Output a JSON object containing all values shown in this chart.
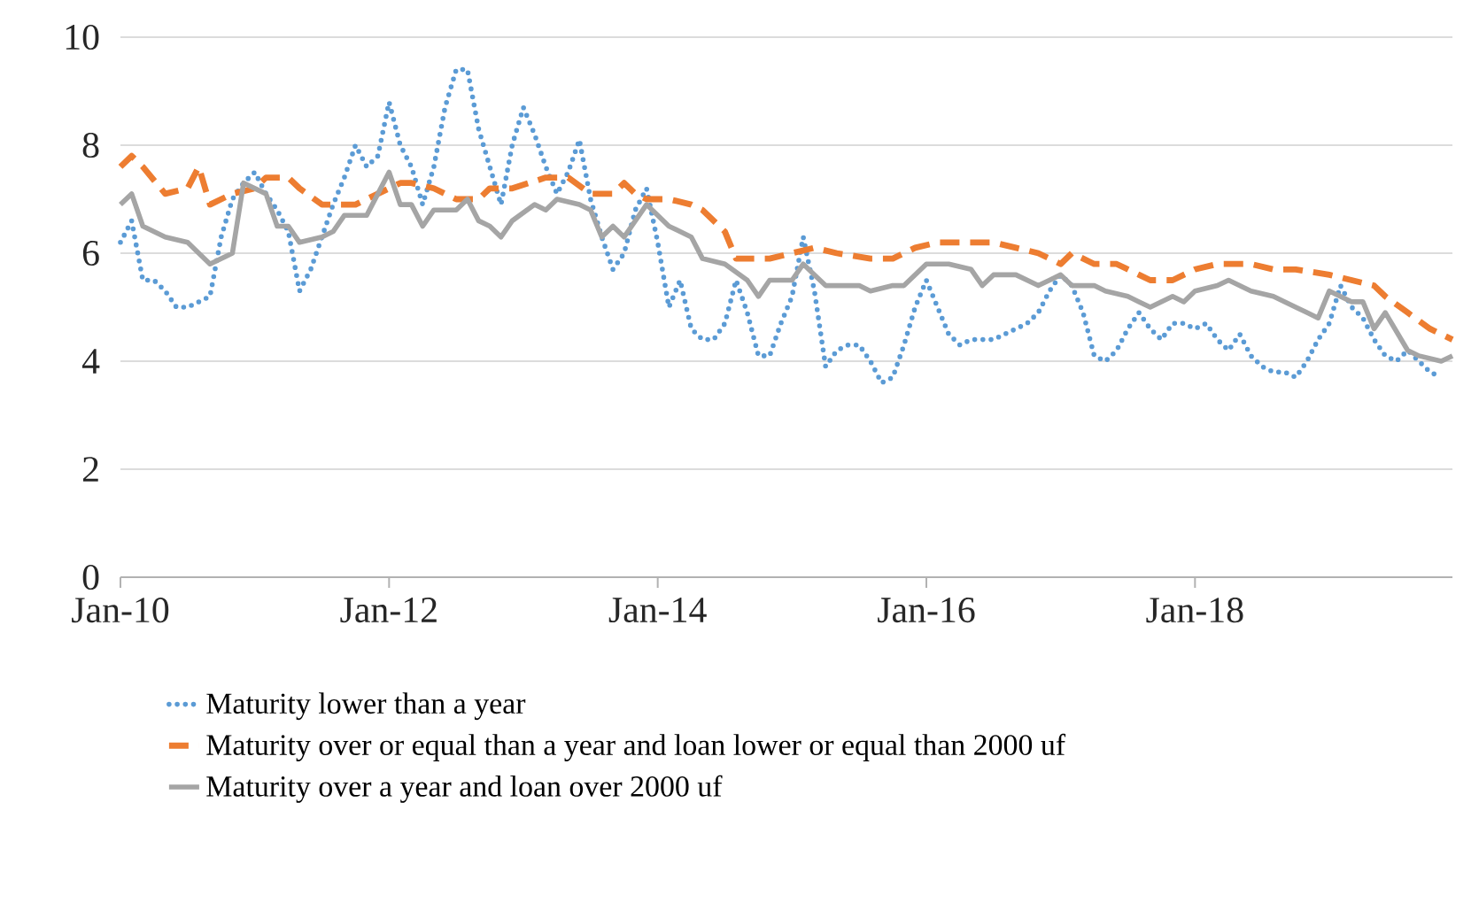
{
  "chart_data": {
    "type": "line",
    "xlim": [
      "2010-01",
      "2019-12"
    ],
    "ylim": [
      0,
      10
    ],
    "xticks": [
      {
        "value": "2010-01",
        "label": "Jan-10"
      },
      {
        "value": "2012-01",
        "label": "Jan-12"
      },
      {
        "value": "2014-01",
        "label": "Jan-14"
      },
      {
        "value": "2016-01",
        "label": "Jan-16"
      },
      {
        "value": "2018-01",
        "label": "Jan-18"
      }
    ],
    "yticks": [
      0,
      2,
      4,
      6,
      8,
      10
    ],
    "grid": "y",
    "legend": "bottom",
    "series": [
      {
        "name": "Maturity lower than a year",
        "color": "#5b9bd5",
        "line_style": "dotted",
        "x": [
          "2010-01",
          "2010-02",
          "2010-03",
          "2010-04",
          "2010-05",
          "2010-06",
          "2010-07",
          "2010-08",
          "2010-09",
          "2010-10",
          "2010-11",
          "2010-12",
          "2011-01",
          "2011-02",
          "2011-03",
          "2011-04",
          "2011-05",
          "2011-06",
          "2011-07",
          "2011-08",
          "2011-09",
          "2011-10",
          "2011-11",
          "2011-12",
          "2012-01",
          "2012-02",
          "2012-03",
          "2012-04",
          "2012-05",
          "2012-06",
          "2012-07",
          "2012-08",
          "2012-09",
          "2012-10",
          "2012-11",
          "2012-12",
          "2013-01",
          "2013-02",
          "2013-03",
          "2013-04",
          "2013-05",
          "2013-06",
          "2013-07",
          "2013-08",
          "2013-09",
          "2013-10",
          "2013-11",
          "2013-12",
          "2014-01",
          "2014-02",
          "2014-03",
          "2014-04",
          "2014-05",
          "2014-06",
          "2014-07",
          "2014-08",
          "2014-09",
          "2014-10",
          "2014-11",
          "2014-12",
          "2015-01",
          "2015-02",
          "2015-03",
          "2015-04",
          "2015-05",
          "2015-06",
          "2015-07",
          "2015-08",
          "2015-09",
          "2015-10",
          "2015-11",
          "2015-12",
          "2016-01",
          "2016-02",
          "2016-03",
          "2016-04",
          "2016-05",
          "2016-06",
          "2016-07",
          "2016-08",
          "2016-09",
          "2016-10",
          "2016-11",
          "2016-12",
          "2017-01",
          "2017-02",
          "2017-03",
          "2017-04",
          "2017-05",
          "2017-06",
          "2017-07",
          "2017-08",
          "2017-09",
          "2017-10",
          "2017-11",
          "2017-12",
          "2018-01",
          "2018-02",
          "2018-03",
          "2018-04",
          "2018-05",
          "2018-06",
          "2018-07",
          "2018-08",
          "2018-09",
          "2018-10",
          "2018-11",
          "2018-12",
          "2019-01",
          "2019-02",
          "2019-03",
          "2019-04",
          "2019-05",
          "2019-06",
          "2019-07",
          "2019-08",
          "2019-09",
          "2019-10",
          "2019-11"
        ],
        "values": [
          6.2,
          6.6,
          5.5,
          5.5,
          5.3,
          5.0,
          5.0,
          5.1,
          5.2,
          6.3,
          7.0,
          7.3,
          7.5,
          7.1,
          6.8,
          6.4,
          5.3,
          5.7,
          6.3,
          6.9,
          7.4,
          8.0,
          7.6,
          7.8,
          8.8,
          8.0,
          7.6,
          6.9,
          7.6,
          8.7,
          9.4,
          9.4,
          8.3,
          7.6,
          6.9,
          8.0,
          8.7,
          8.2,
          7.6,
          7.1,
          7.5,
          8.1,
          7.0,
          6.3,
          5.7,
          6.0,
          6.8,
          7.2,
          6.2,
          5.0,
          5.5,
          4.6,
          4.4,
          4.4,
          4.7,
          5.5,
          4.9,
          4.1,
          4.1,
          4.7,
          5.2,
          6.3,
          5.3,
          3.9,
          4.2,
          4.3,
          4.3,
          4.0,
          3.6,
          3.7,
          4.3,
          5.0,
          5.5,
          5.0,
          4.5,
          4.3,
          4.4,
          4.4,
          4.4,
          4.5,
          4.6,
          4.7,
          4.9,
          5.3,
          5.6,
          5.4,
          4.9,
          4.1,
          4.0,
          4.2,
          4.6,
          4.9,
          4.6,
          4.4,
          4.7,
          4.7,
          4.6,
          4.7,
          4.4,
          4.2,
          4.5,
          4.1,
          3.9,
          3.8,
          3.8,
          3.7,
          4.0,
          4.4,
          4.7,
          5.4,
          5.0,
          4.8,
          4.4,
          4.1,
          4.0,
          4.2,
          4.0,
          3.8,
          3.7
        ]
      },
      {
        "name": "Maturity over or equal than a year and loan lower or equal than 2000 uf",
        "color": "#ed7d31",
        "line_style": "dashed",
        "x": [
          "2010-01",
          "2010-02",
          "2010-03",
          "2010-05",
          "2010-07",
          "2010-08",
          "2010-09",
          "2010-11",
          "2011-01",
          "2011-02",
          "2011-04",
          "2011-05",
          "2011-07",
          "2011-09",
          "2011-10",
          "2011-12",
          "2012-02",
          "2012-03",
          "2012-05",
          "2012-07",
          "2012-09",
          "2012-10",
          "2012-12",
          "2013-03",
          "2013-05",
          "2013-07",
          "2013-09",
          "2013-10",
          "2013-11",
          "2013-12",
          "2014-02",
          "2014-04",
          "2014-05",
          "2014-07",
          "2014-08",
          "2014-10",
          "2014-11",
          "2015-01",
          "2015-03",
          "2015-05",
          "2015-08",
          "2015-10",
          "2015-12",
          "2016-02",
          "2016-04",
          "2016-06",
          "2016-07",
          "2016-09",
          "2016-11",
          "2017-01",
          "2017-02",
          "2017-04",
          "2017-06",
          "2017-08",
          "2017-09",
          "2017-11",
          "2018-01",
          "2018-03",
          "2018-04",
          "2018-06",
          "2018-08",
          "2018-10",
          "2019-01",
          "2019-03",
          "2019-05",
          "2019-06",
          "2019-08",
          "2019-10",
          "2019-12"
        ],
        "values": [
          7.6,
          7.8,
          7.6,
          7.1,
          7.2,
          7.6,
          6.9,
          7.1,
          7.2,
          7.4,
          7.4,
          7.2,
          6.9,
          6.9,
          6.9,
          7.1,
          7.3,
          7.3,
          7.2,
          7.0,
          7.0,
          7.2,
          7.2,
          7.4,
          7.4,
          7.1,
          7.1,
          7.3,
          7.1,
          7.0,
          7.0,
          6.9,
          6.8,
          6.4,
          5.9,
          5.9,
          5.9,
          6.0,
          6.1,
          6.0,
          5.9,
          5.9,
          6.1,
          6.2,
          6.2,
          6.2,
          6.2,
          6.1,
          6.0,
          5.8,
          6.0,
          5.8,
          5.8,
          5.6,
          5.5,
          5.5,
          5.7,
          5.8,
          5.8,
          5.8,
          5.7,
          5.7,
          5.6,
          5.5,
          5.4,
          5.2,
          4.9,
          4.6,
          4.4
        ]
      },
      {
        "name": "Maturity over a year and loan over 2000 uf",
        "color": "#a5a5a5",
        "line_style": "solid",
        "x": [
          "2010-01",
          "2010-02",
          "2010-03",
          "2010-05",
          "2010-07",
          "2010-08",
          "2010-09",
          "2010-11",
          "2010-12",
          "2011-02",
          "2011-03",
          "2011-04",
          "2011-05",
          "2011-07",
          "2011-08",
          "2011-09",
          "2011-11",
          "2011-12",
          "2012-01",
          "2012-02",
          "2012-03",
          "2012-04",
          "2012-05",
          "2012-07",
          "2012-08",
          "2012-09",
          "2012-10",
          "2012-11",
          "2012-12",
          "2013-02",
          "2013-03",
          "2013-04",
          "2013-06",
          "2013-07",
          "2013-08",
          "2013-09",
          "2013-10",
          "2013-11",
          "2013-12",
          "2014-02",
          "2014-04",
          "2014-05",
          "2014-07",
          "2014-09",
          "2014-10",
          "2014-11",
          "2015-01",
          "2015-02",
          "2015-03",
          "2015-04",
          "2015-06",
          "2015-07",
          "2015-08",
          "2015-10",
          "2015-11",
          "2016-01",
          "2016-03",
          "2016-05",
          "2016-06",
          "2016-07",
          "2016-09",
          "2016-11",
          "2016-12",
          "2017-01",
          "2017-02",
          "2017-04",
          "2017-05",
          "2017-07",
          "2017-08",
          "2017-09",
          "2017-11",
          "2017-12",
          "2018-01",
          "2018-03",
          "2018-04",
          "2018-06",
          "2018-08",
          "2018-10",
          "2018-11",
          "2018-12",
          "2019-01",
          "2019-03",
          "2019-04",
          "2019-05",
          "2019-06",
          "2019-08",
          "2019-09",
          "2019-11",
          "2019-12"
        ],
        "values": [
          6.9,
          7.1,
          6.5,
          6.3,
          6.2,
          6.0,
          5.8,
          6.0,
          7.3,
          7.1,
          6.5,
          6.5,
          6.2,
          6.3,
          6.4,
          6.7,
          6.7,
          7.1,
          7.5,
          6.9,
          6.9,
          6.5,
          6.8,
          6.8,
          7.0,
          6.6,
          6.5,
          6.3,
          6.6,
          6.9,
          6.8,
          7.0,
          6.9,
          6.8,
          6.3,
          6.5,
          6.3,
          6.6,
          6.9,
          6.5,
          6.3,
          5.9,
          5.8,
          5.5,
          5.2,
          5.5,
          5.5,
          5.8,
          5.6,
          5.4,
          5.4,
          5.4,
          5.3,
          5.4,
          5.4,
          5.8,
          5.8,
          5.7,
          5.4,
          5.6,
          5.6,
          5.4,
          5.5,
          5.6,
          5.4,
          5.4,
          5.3,
          5.2,
          5.1,
          5.0,
          5.2,
          5.1,
          5.3,
          5.4,
          5.5,
          5.3,
          5.2,
          5.0,
          4.9,
          4.8,
          5.3,
          5.1,
          5.1,
          4.6,
          4.9,
          4.2,
          4.1,
          4.0,
          4.1
        ]
      }
    ]
  }
}
